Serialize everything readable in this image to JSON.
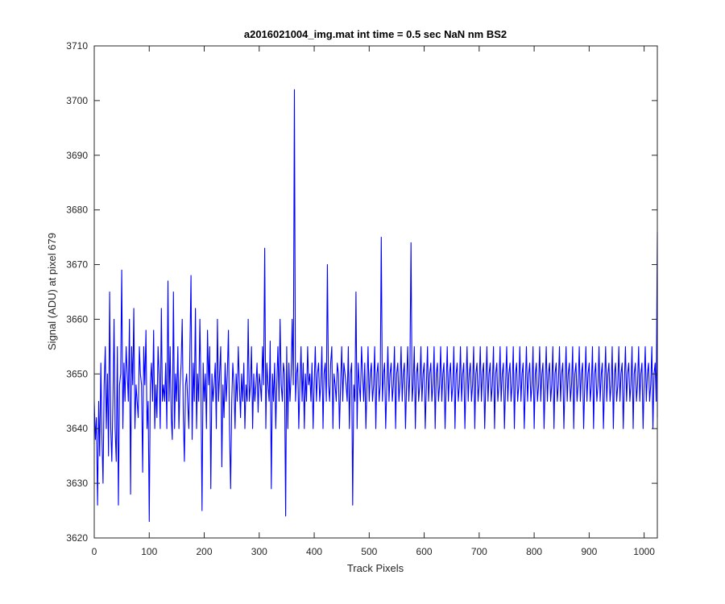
{
  "chart_data": {
    "type": "line",
    "title": "a2016021004_img.mat int time = 0.5 sec  NaN nm BS2",
    "xlabel": "Track Pixels",
    "ylabel": "Signal (ADU) at pixel 679",
    "xlim": [
      0,
      1024
    ],
    "ylim": [
      3620,
      3710
    ],
    "x_ticks": [
      0,
      100,
      200,
      300,
      400,
      500,
      600,
      700,
      800,
      900,
      1000
    ],
    "y_ticks": [
      3620,
      3630,
      3640,
      3650,
      3660,
      3670,
      3680,
      3690,
      3700,
      3710
    ],
    "grid": false,
    "legend": "none",
    "series": [
      {
        "color": "#0000ff",
        "x_start": 0,
        "x_step": 2,
        "values": [
          3645,
          3638,
          3642,
          3626,
          3645,
          3635,
          3652,
          3638,
          3630,
          3648,
          3655,
          3640,
          3650,
          3635,
          3665,
          3640,
          3634,
          3645,
          3660,
          3640,
          3634,
          3655,
          3626,
          3648,
          3650,
          3669,
          3640,
          3652,
          3645,
          3655,
          3650,
          3645,
          3660,
          3628,
          3655,
          3648,
          3662,
          3640,
          3648,
          3645,
          3642,
          3655,
          3650,
          3648,
          3632,
          3655,
          3648,
          3658,
          3640,
          3645,
          3623,
          3648,
          3652,
          3645,
          3658,
          3640,
          3648,
          3642,
          3655,
          3650,
          3640,
          3662,
          3645,
          3648,
          3645,
          3652,
          3640,
          3667,
          3645,
          3655,
          3642,
          3638,
          3665,
          3640,
          3650,
          3645,
          3655,
          3640,
          3648,
          3652,
          3660,
          3642,
          3634,
          3648,
          3650,
          3645,
          3640,
          3655,
          3668,
          3638,
          3652,
          3645,
          3662,
          3640,
          3650,
          3645,
          3660,
          3648,
          3625,
          3652,
          3645,
          3650,
          3640,
          3658,
          3648,
          3655,
          3629,
          3650,
          3645,
          3648,
          3652,
          3640,
          3660,
          3645,
          3650,
          3655,
          3633,
          3648,
          3642,
          3652,
          3645,
          3650,
          3658,
          3640,
          3629,
          3645,
          3652,
          3648,
          3640,
          3650,
          3645,
          3655,
          3648,
          3642,
          3650,
          3645,
          3652,
          3640,
          3648,
          3645,
          3660,
          3645,
          3648,
          3655,
          3640,
          3650,
          3645,
          3648,
          3652,
          3643,
          3650,
          3648,
          3645,
          3655,
          3648,
          3673,
          3640,
          3652,
          3648,
          3645,
          3656,
          3629,
          3650,
          3645,
          3652,
          3640,
          3648,
          3655,
          3645,
          3660,
          3648,
          3645,
          3652,
          3650,
          3624,
          3655,
          3640,
          3652,
          3645,
          3650,
          3660,
          3648,
          3702,
          3645,
          3650,
          3652,
          3640,
          3648,
          3655,
          3645,
          3652,
          3640,
          3650,
          3645,
          3655,
          3648,
          3650,
          3645,
          3652,
          3640,
          3648,
          3655,
          3645,
          3650,
          3652,
          3645,
          3648,
          3655,
          3640,
          3650,
          3652,
          3645,
          3670,
          3648,
          3645,
          3652,
          3655,
          3640,
          3650,
          3648,
          3645,
          3652,
          3650,
          3640,
          3648,
          3655,
          3645,
          3652,
          3650,
          3648,
          3645,
          3655,
          3640,
          3650,
          3652,
          3626,
          3648,
          3645,
          3665,
          3640,
          3652,
          3648,
          3645,
          3655,
          3650,
          3645,
          3652,
          3640,
          3648,
          3655,
          3645,
          3650,
          3652,
          3645,
          3648,
          3655,
          3640,
          3650,
          3652,
          3645,
          3648,
          3675,
          3645,
          3650,
          3652,
          3640,
          3648,
          3655,
          3645,
          3650,
          3652,
          3645,
          3648,
          3655,
          3640,
          3650,
          3652,
          3645,
          3648,
          3655,
          3645,
          3650,
          3652,
          3640,
          3648,
          3655,
          3645,
          3650,
          3674,
          3645,
          3648,
          3655,
          3640,
          3650,
          3652,
          3645,
          3648,
          3655,
          3645,
          3650,
          3652,
          3640,
          3648,
          3655,
          3645,
          3650,
          3652,
          3645,
          3648,
          3655,
          3640,
          3650,
          3652,
          3645,
          3648,
          3655,
          3645,
          3650,
          3652,
          3640,
          3648,
          3655,
          3645,
          3650,
          3652,
          3645,
          3648,
          3655,
          3640,
          3650,
          3652,
          3645,
          3648,
          3655,
          3645,
          3650,
          3652,
          3640,
          3648,
          3655,
          3645,
          3650,
          3652,
          3645,
          3648,
          3655,
          3640,
          3650,
          3652,
          3645,
          3648,
          3655,
          3645,
          3650,
          3652,
          3640,
          3648,
          3655,
          3645,
          3650,
          3652,
          3645,
          3648,
          3655,
          3640,
          3650,
          3652,
          3645,
          3648,
          3655,
          3645,
          3650,
          3652,
          3640,
          3648,
          3655,
          3645,
          3650,
          3652,
          3645,
          3648,
          3655,
          3640,
          3650,
          3652,
          3645,
          3648,
          3655,
          3645,
          3650,
          3652,
          3640,
          3648,
          3655,
          3645,
          3650,
          3652,
          3645,
          3648,
          3655,
          3640,
          3650,
          3652,
          3645,
          3648,
          3655,
          3645,
          3650,
          3652,
          3640,
          3648,
          3655,
          3645,
          3650,
          3652,
          3645,
          3648,
          3655,
          3640,
          3650,
          3652,
          3645,
          3648,
          3655,
          3645,
          3650,
          3652,
          3640,
          3648,
          3655,
          3645,
          3650,
          3652,
          3645,
          3648,
          3655,
          3640,
          3650,
          3652,
          3645,
          3648,
          3655,
          3645,
          3650,
          3652,
          3640,
          3648,
          3655,
          3645,
          3650,
          3652,
          3645,
          3648,
          3655,
          3640,
          3650,
          3652,
          3645,
          3648,
          3655,
          3645,
          3650,
          3652,
          3640,
          3648,
          3655,
          3645,
          3650,
          3652,
          3645,
          3648,
          3655,
          3640,
          3650,
          3652,
          3645,
          3648,
          3655,
          3645,
          3650,
          3652,
          3640,
          3648,
          3655,
          3645,
          3650,
          3652,
          3645,
          3648,
          3655,
          3640,
          3650,
          3652,
          3645,
          3648,
          3655,
          3645,
          3650,
          3652,
          3640,
          3648,
          3655,
          3645,
          3650,
          3652,
          3645,
          3648,
          3655,
          3640,
          3650,
          3652,
          3645,
          3676,
          3655,
          3645,
          3650,
          3652,
          3642,
          3658
        ]
      }
    ]
  }
}
